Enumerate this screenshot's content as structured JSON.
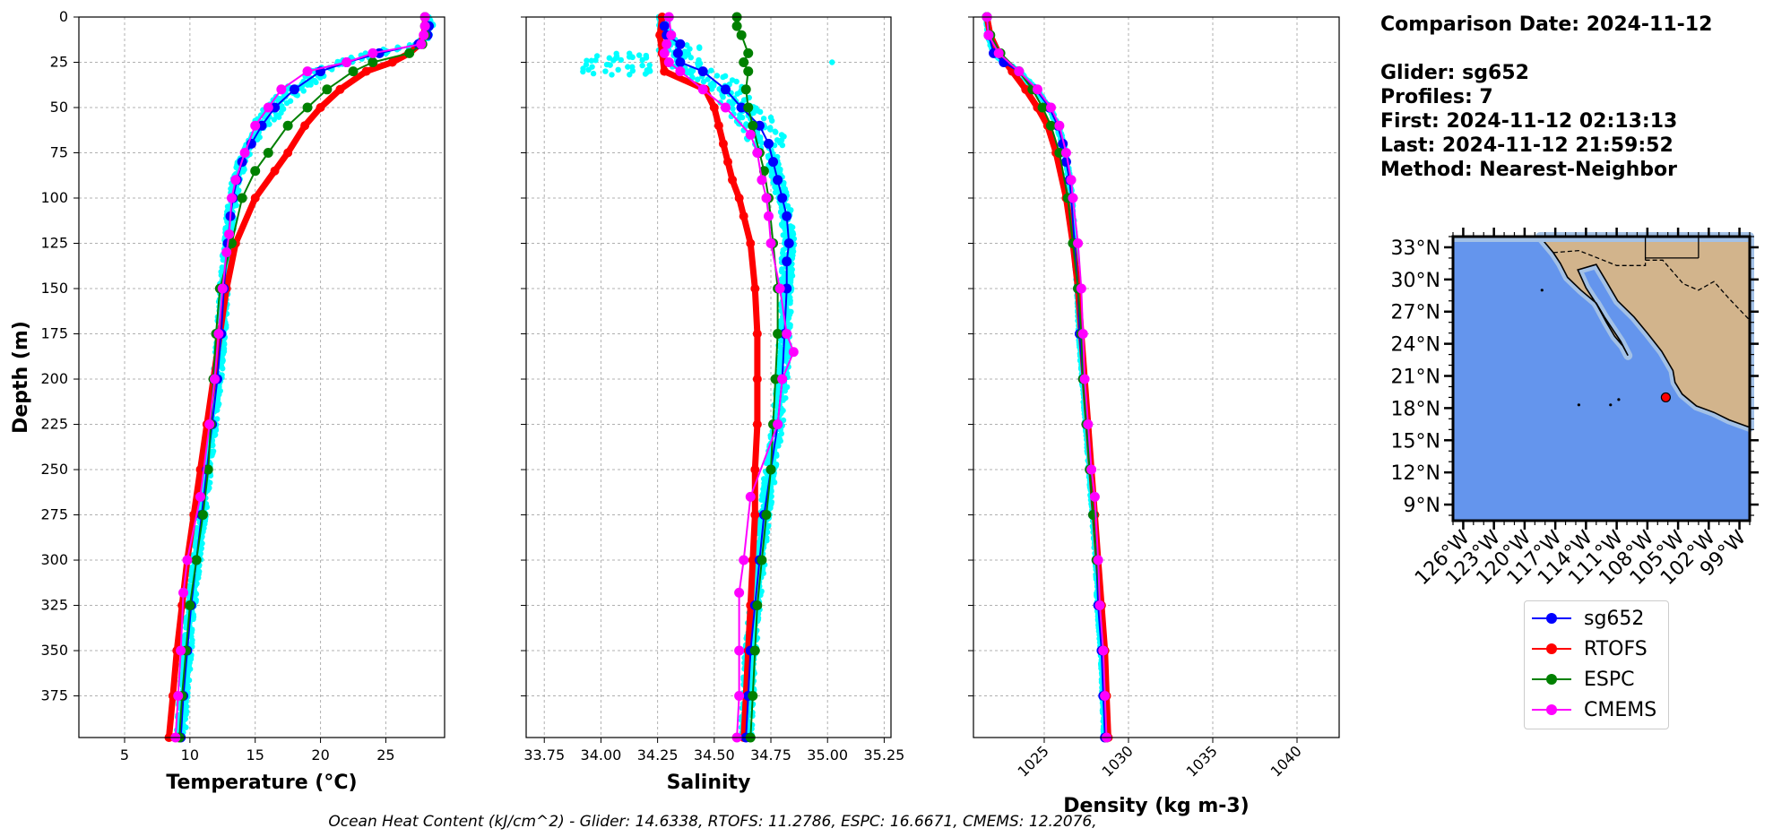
{
  "info": {
    "comparison": "Comparison Date: 2024-11-12",
    "glider": "Glider: sg652",
    "profiles": "Profiles: 7",
    "first": "First: 2024-11-12 02:13:13",
    "last": "Last: 2024-11-12 21:59:52",
    "method": "Method: Nearest-Neighbor"
  },
  "footer": "Ocean Heat Content (kJ/cm^2) - Glider: 14.6338,  RTOFS: 11.2786,  ESPC: 16.6671,  CMEMS: 12.2076,",
  "legend": [
    {
      "name": "sg652",
      "color": "#0000ff"
    },
    {
      "name": "RTOFS",
      "color": "#ff0000"
    },
    {
      "name": "ESPC",
      "color": "#008000"
    },
    {
      "name": "CMEMS",
      "color": "#ff00ff"
    }
  ],
  "colors": {
    "glider_raw": "#00ffff",
    "ocean": "#6495ed",
    "shelf": "#a3c1e6",
    "land": "#d2b48c"
  },
  "chart_data": [
    {
      "type": "line",
      "xlabel": "Temperature (°C)",
      "ylabel": "Depth (m)",
      "xlim": [
        1.5,
        29.5
      ],
      "ylim": [
        398,
        0
      ],
      "xticks": [
        5,
        10,
        15,
        20,
        25
      ],
      "yticks": [
        0,
        25,
        50,
        75,
        100,
        125,
        150,
        175,
        200,
        225,
        250,
        275,
        300,
        325,
        350,
        375
      ],
      "grid": true,
      "series": [
        {
          "name": "sg652",
          "depth": [
            5,
            10,
            15,
            20,
            25,
            30,
            40,
            50,
            60,
            70,
            80,
            90,
            100,
            110,
            125,
            150,
            175,
            200,
            225,
            250,
            275,
            300,
            325,
            350,
            375,
            398
          ],
          "values": [
            28.3,
            28.2,
            27.5,
            24.5,
            22.0,
            20.0,
            18.0,
            16.5,
            15.5,
            14.7,
            14.0,
            13.6,
            13.3,
            13.1,
            12.9,
            12.6,
            12.4,
            12.1,
            11.7,
            11.3,
            10.9,
            10.5,
            10.1,
            9.8,
            9.5,
            9.3
          ]
        },
        {
          "name": "RTOFS",
          "depth": [
            0,
            5,
            10,
            15,
            20,
            25,
            30,
            40,
            50,
            60,
            75,
            85,
            100,
            125,
            150,
            175,
            200,
            225,
            250,
            275,
            300,
            325,
            350,
            375,
            398
          ],
          "values": [
            28.0,
            28.0,
            27.9,
            27.6,
            26.8,
            25.5,
            23.5,
            21.5,
            20.0,
            18.8,
            17.5,
            16.5,
            15.0,
            13.5,
            12.8,
            12.3,
            11.8,
            11.3,
            10.8,
            10.3,
            9.8,
            9.4,
            9.0,
            8.7,
            8.4
          ]
        },
        {
          "name": "ESPC",
          "depth": [
            0,
            5,
            10,
            15,
            20,
            25,
            30,
            40,
            50,
            60,
            75,
            85,
            100,
            125,
            150,
            175,
            200,
            225,
            250,
            275,
            300,
            325,
            350,
            375,
            398
          ],
          "values": [
            28.0,
            28.0,
            28.0,
            27.8,
            26.8,
            24.0,
            22.5,
            20.5,
            19.0,
            17.5,
            16.0,
            15.0,
            14.0,
            13.2,
            12.3,
            12.0,
            11.8,
            11.6,
            11.4,
            11.0,
            10.5,
            10.0,
            9.7,
            9.4,
            9.2
          ]
        },
        {
          "name": "CMEMS",
          "depth": [
            0,
            5,
            10,
            15,
            20,
            25,
            30,
            40,
            50,
            60,
            75,
            90,
            100,
            120,
            130,
            150,
            175,
            200,
            225,
            265,
            300,
            318,
            350,
            375,
            398
          ],
          "values": [
            28.0,
            28.0,
            27.9,
            27.7,
            24.0,
            22.0,
            19.0,
            17.0,
            16.0,
            15.0,
            14.2,
            13.5,
            13.2,
            13.0,
            12.8,
            12.5,
            12.2,
            11.9,
            11.5,
            10.8,
            9.8,
            9.5,
            9.3,
            9.1,
            8.9
          ]
        }
      ]
    },
    {
      "type": "line",
      "xlabel": "Salinity",
      "xlim": [
        33.67,
        35.28
      ],
      "ylim": [
        398,
        0
      ],
      "xticks": [
        33.75,
        34.0,
        34.25,
        34.5,
        34.75,
        35.0,
        35.25
      ],
      "grid": true,
      "series": [
        {
          "name": "sg652",
          "depth": [
            5,
            10,
            15,
            20,
            25,
            30,
            40,
            50,
            60,
            70,
            80,
            90,
            100,
            110,
            125,
            135,
            150,
            175,
            200,
            225,
            250,
            275,
            300,
            325,
            350,
            375,
            398
          ],
          "values": [
            34.28,
            34.29,
            34.35,
            34.34,
            34.35,
            34.45,
            34.55,
            34.62,
            34.7,
            34.74,
            34.76,
            34.78,
            34.8,
            34.82,
            34.83,
            34.82,
            34.82,
            34.81,
            34.8,
            34.78,
            34.75,
            34.72,
            34.7,
            34.68,
            34.66,
            34.65,
            34.64
          ]
        },
        {
          "name": "RTOFS",
          "depth": [
            0,
            10,
            20,
            30,
            40,
            50,
            60,
            70,
            80,
            90,
            100,
            110,
            125,
            150,
            175,
            200,
            225,
            250,
            275,
            300,
            325,
            350,
            375,
            398
          ],
          "values": [
            34.27,
            34.26,
            34.27,
            34.28,
            34.46,
            34.5,
            34.52,
            34.54,
            34.56,
            34.58,
            34.61,
            34.63,
            34.66,
            34.68,
            34.69,
            34.69,
            34.69,
            34.68,
            34.68,
            34.67,
            34.66,
            34.65,
            34.64,
            34.63
          ]
        },
        {
          "name": "ESPC",
          "depth": [
            0,
            5,
            10,
            20,
            25,
            30,
            40,
            50,
            60,
            75,
            85,
            100,
            125,
            150,
            175,
            200,
            225,
            250,
            275,
            300,
            325,
            350,
            375,
            398
          ],
          "values": [
            34.6,
            34.6,
            34.62,
            34.65,
            34.63,
            34.65,
            34.64,
            34.65,
            34.67,
            34.7,
            34.72,
            34.74,
            34.76,
            34.78,
            34.78,
            34.77,
            34.76,
            34.75,
            34.73,
            34.71,
            34.69,
            34.68,
            34.67,
            34.66
          ]
        },
        {
          "name": "CMEMS",
          "depth": [
            0,
            10,
            15,
            20,
            25,
            30,
            40,
            50,
            65,
            75,
            90,
            100,
            110,
            125,
            150,
            175,
            185,
            200,
            225,
            265,
            300,
            318,
            350,
            375,
            398
          ],
          "values": [
            34.3,
            34.31,
            34.29,
            34.28,
            34.3,
            34.35,
            34.45,
            34.55,
            34.66,
            34.69,
            34.71,
            34.73,
            34.74,
            34.75,
            34.79,
            34.82,
            34.85,
            34.8,
            34.78,
            34.66,
            34.63,
            34.61,
            34.61,
            34.61,
            34.6
          ]
        }
      ]
    },
    {
      "type": "line",
      "xlabel": "Density (kg m-3)",
      "xlim": [
        1020.8,
        1042.5
      ],
      "ylim": [
        398,
        0
      ],
      "xticks": [
        1025,
        1030,
        1035,
        1040
      ],
      "grid": true,
      "series": [
        {
          "name": "sg652",
          "depth": [
            0,
            10,
            20,
            25,
            30,
            40,
            50,
            60,
            70,
            80,
            90,
            100,
            125,
            150,
            175,
            200,
            225,
            250,
            275,
            300,
            325,
            350,
            375,
            398
          ],
          "values": [
            1021.6,
            1021.7,
            1022.0,
            1022.6,
            1023.5,
            1024.5,
            1025.3,
            1025.8,
            1026.1,
            1026.3,
            1026.5,
            1026.6,
            1026.8,
            1027.0,
            1027.1,
            1027.3,
            1027.5,
            1027.7,
            1027.9,
            1028.1,
            1028.2,
            1028.4,
            1028.5,
            1028.6
          ]
        },
        {
          "name": "RTOFS",
          "depth": [
            0,
            10,
            20,
            30,
            40,
            50,
            60,
            75,
            100,
            125,
            150,
            175,
            200,
            225,
            250,
            275,
            300,
            325,
            350,
            375,
            398
          ],
          "values": [
            1021.6,
            1021.8,
            1022.3,
            1023.1,
            1023.9,
            1024.6,
            1025.2,
            1025.7,
            1026.3,
            1026.7,
            1027.0,
            1027.2,
            1027.4,
            1027.6,
            1027.8,
            1028.0,
            1028.2,
            1028.4,
            1028.6,
            1028.7,
            1028.8
          ]
        },
        {
          "name": "ESPC",
          "depth": [
            0,
            10,
            20,
            30,
            40,
            50,
            60,
            75,
            100,
            125,
            150,
            175,
            200,
            225,
            250,
            275,
            300,
            325,
            350,
            375,
            398
          ],
          "values": [
            1021.6,
            1021.8,
            1022.4,
            1023.5,
            1024.3,
            1024.9,
            1025.4,
            1025.9,
            1026.4,
            1026.7,
            1027.0,
            1027.2,
            1027.3,
            1027.5,
            1027.7,
            1027.9,
            1028.1,
            1028.3,
            1028.5,
            1028.6,
            1028.7
          ]
        },
        {
          "name": "CMEMS",
          "depth": [
            0,
            10,
            20,
            30,
            40,
            50,
            60,
            75,
            90,
            100,
            125,
            150,
            175,
            200,
            225,
            250,
            265,
            300,
            325,
            350,
            375,
            398
          ],
          "values": [
            1021.6,
            1021.7,
            1022.3,
            1023.5,
            1024.6,
            1025.4,
            1025.9,
            1026.3,
            1026.6,
            1026.7,
            1027.0,
            1027.2,
            1027.3,
            1027.4,
            1027.6,
            1027.8,
            1028.0,
            1028.2,
            1028.3,
            1028.5,
            1028.6,
            1028.7
          ]
        }
      ]
    },
    {
      "type": "map",
      "lon_range": [
        -127,
        -98
      ],
      "lat_range": [
        7.5,
        34
      ],
      "xticks": [
        "126°W",
        "123°W",
        "120°W",
        "117°W",
        "114°W",
        "111°W",
        "108°W",
        "105°W",
        "102°W",
        "99°W"
      ],
      "xtick_values": [
        -126,
        -123,
        -120,
        -117,
        -114,
        -111,
        -108,
        -105,
        -102,
        -99
      ],
      "yticks": [
        "33°N",
        "30°N",
        "27°N",
        "24°N",
        "21°N",
        "18°N",
        "15°N",
        "12°N",
        "9°N"
      ],
      "ytick_values": [
        33,
        30,
        27,
        24,
        21,
        18,
        15,
        12,
        9
      ],
      "marker": {
        "lon": -106.2,
        "lat": 19.0
      }
    }
  ]
}
